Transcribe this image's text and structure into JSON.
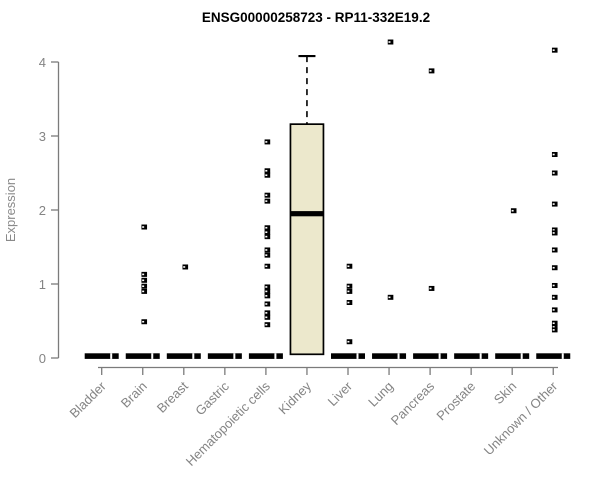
{
  "chart_data": {
    "type": "boxplot",
    "title": "ENSG00000258723 - RP11-332E19.2",
    "ylabel": "Expression",
    "ylim": [
      0,
      4
    ],
    "yticks": [
      0,
      1,
      2,
      3,
      4
    ],
    "grid": false,
    "legend": "none",
    "categories": [
      "Bladder",
      "Brain",
      "Breast",
      "Gastric",
      "Hematopoietic cells",
      "Kidney",
      "Liver",
      "Lung",
      "Pancreas",
      "Prostate",
      "Skin",
      "Unknown / Other"
    ],
    "boxes": [
      {
        "category": "Bladder",
        "whisker_low": 0,
        "q1": 0,
        "median": 0,
        "q3": 0,
        "whisker_high": 0
      },
      {
        "category": "Brain",
        "whisker_low": 0,
        "q1": 0,
        "median": 0,
        "q3": 0,
        "whisker_high": 0
      },
      {
        "category": "Breast",
        "whisker_low": 0,
        "q1": 0,
        "median": 0,
        "q3": 0,
        "whisker_high": 0
      },
      {
        "category": "Gastric",
        "whisker_low": 0,
        "q1": 0,
        "median": 0,
        "q3": 0,
        "whisker_high": 0
      },
      {
        "category": "Hematopoietic cells",
        "whisker_low": 0,
        "q1": 0,
        "median": 0,
        "q3": 0,
        "whisker_high": 0
      },
      {
        "category": "Kidney",
        "whisker_low": 0.05,
        "q1": 0.05,
        "median": 1.95,
        "q3": 3.16,
        "whisker_high": 4.08
      },
      {
        "category": "Liver",
        "whisker_low": 0,
        "q1": 0,
        "median": 0,
        "q3": 0,
        "whisker_high": 0
      },
      {
        "category": "Lung",
        "whisker_low": 0,
        "q1": 0,
        "median": 0,
        "q3": 0,
        "whisker_high": 0
      },
      {
        "category": "Pancreas",
        "whisker_low": 0,
        "q1": 0,
        "median": 0,
        "q3": 0,
        "whisker_high": 0
      },
      {
        "category": "Prostate",
        "whisker_low": 0,
        "q1": 0,
        "median": 0,
        "q3": 0,
        "whisker_high": 0
      },
      {
        "category": "Skin",
        "whisker_low": 0,
        "q1": 0,
        "median": 0,
        "q3": 0,
        "whisker_high": 0
      },
      {
        "category": "Unknown / Other",
        "whisker_low": 0,
        "q1": 0,
        "median": 0,
        "q3": 0,
        "whisker_high": 0
      }
    ],
    "outliers": [
      {
        "category": "Brain",
        "values": [
          1.77,
          1.13,
          1.05,
          0.97,
          0.9,
          0.49
        ]
      },
      {
        "category": "Breast",
        "values": [
          1.23
        ]
      },
      {
        "category": "Hematopoietic cells",
        "values": [
          2.92,
          2.53,
          2.47,
          2.2,
          2.12,
          1.76,
          1.7,
          1.64,
          1.46,
          1.39,
          1.24,
          0.96,
          0.9,
          0.84,
          0.73,
          0.61,
          0.55,
          0.45
        ]
      },
      {
        "category": "Liver",
        "values": [
          1.24,
          0.97,
          0.9,
          0.75,
          0.22
        ]
      },
      {
        "category": "Lung",
        "values": [
          4.27,
          0.82
        ]
      },
      {
        "category": "Pancreas",
        "values": [
          3.88,
          0.94
        ]
      },
      {
        "category": "Skin",
        "values": [
          1.99
        ]
      },
      {
        "category": "Unknown / Other",
        "values": [
          4.16,
          2.75,
          2.5,
          2.08,
          1.73,
          1.69,
          1.46,
          1.22,
          0.98,
          0.82,
          0.65,
          0.47,
          0.42,
          0.38
        ]
      }
    ],
    "colors": {
      "box_fill": "#ece8cc",
      "box_border": "#000000",
      "median": "#000000",
      "collapsed_bar": "#000000",
      "axis": "#7b7b7b",
      "tick_text": "#848484",
      "title": "#000000",
      "background": "#ffffff"
    }
  }
}
